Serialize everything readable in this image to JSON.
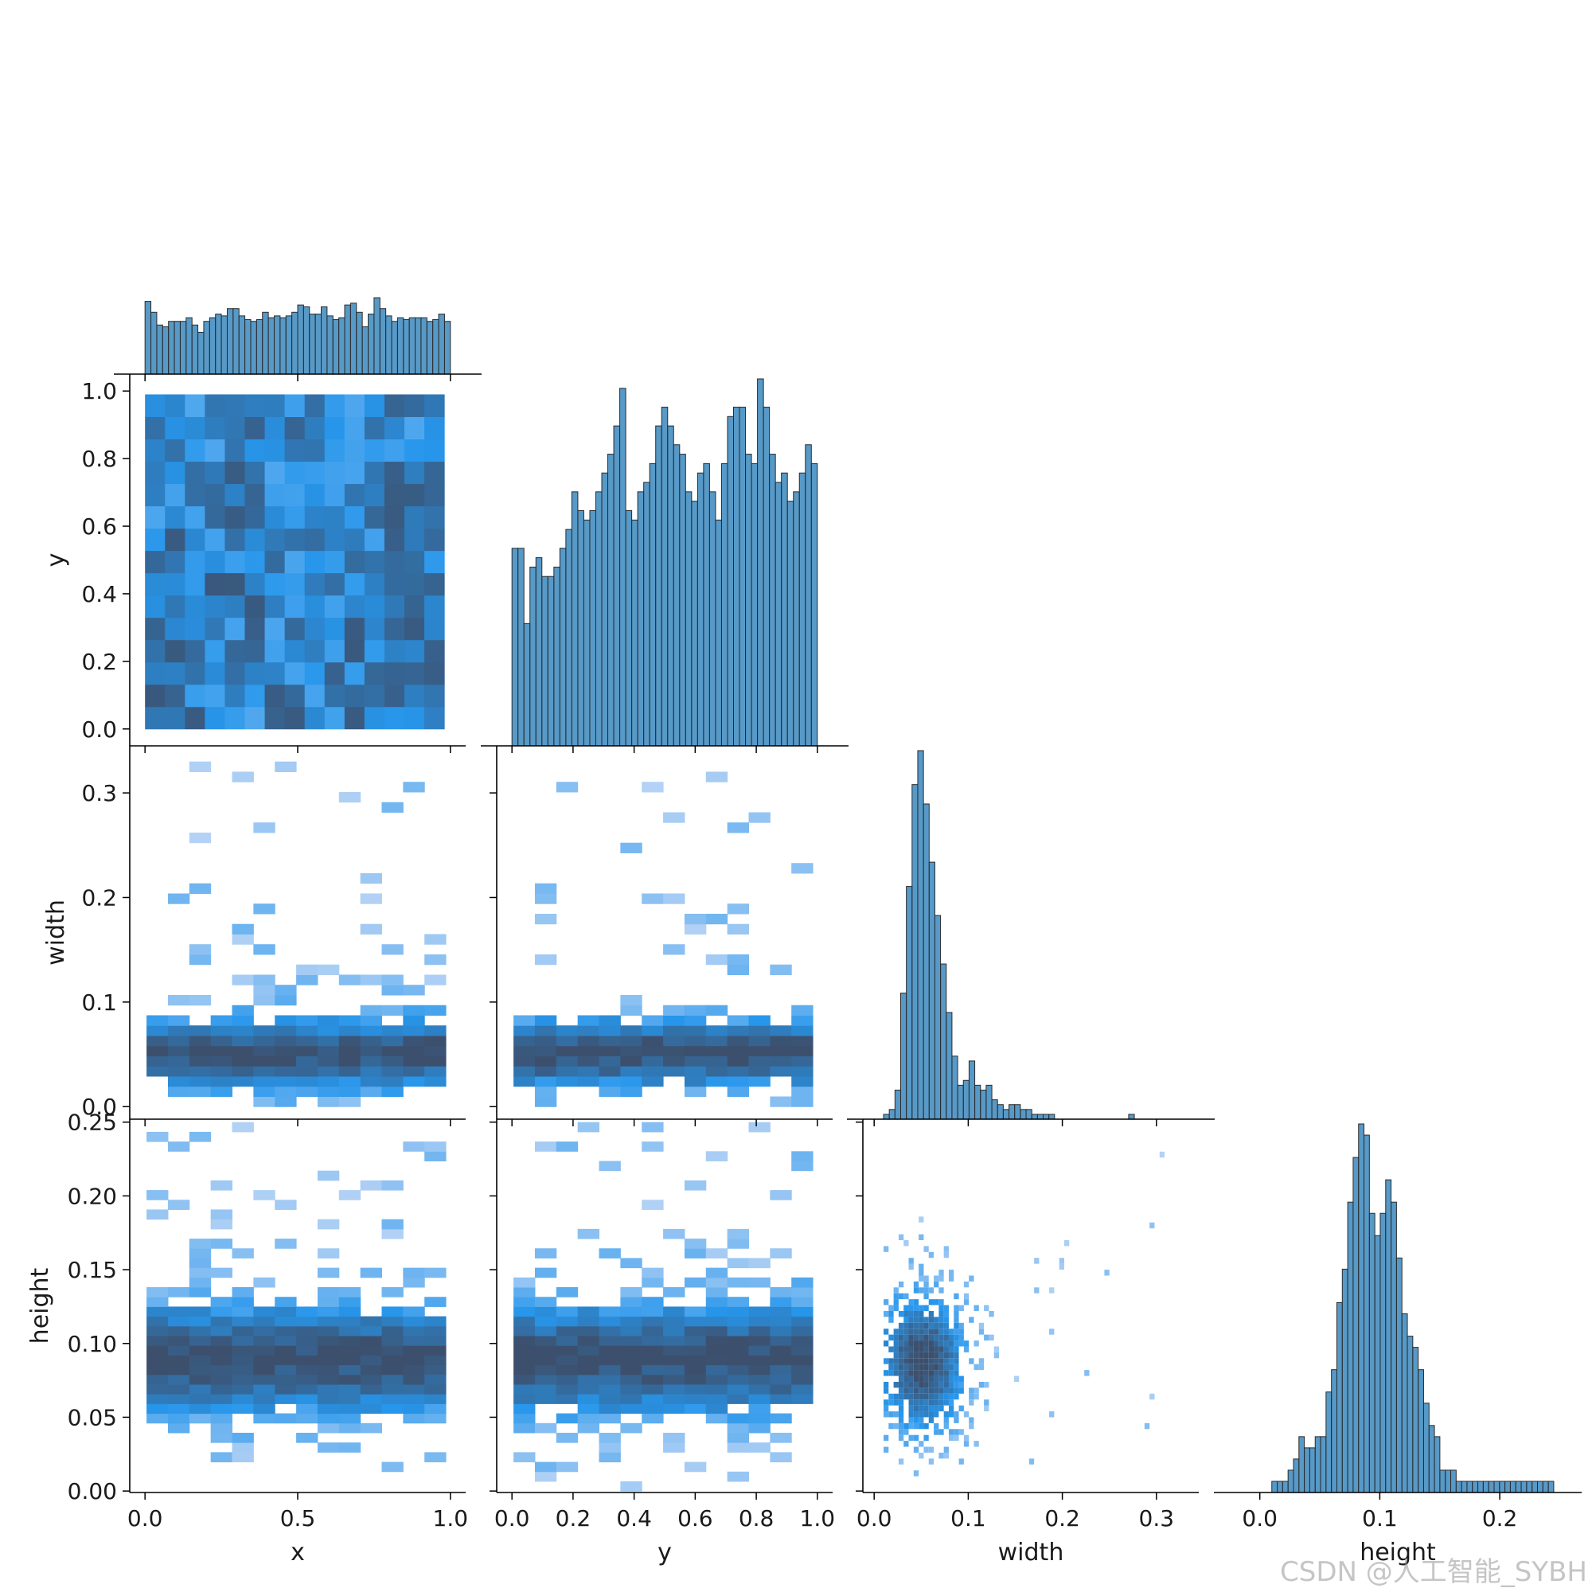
{
  "chart_data": {
    "type": "pairplot",
    "variables": [
      "x",
      "y",
      "width",
      "height"
    ],
    "corner": true,
    "diag_kind": "hist",
    "offdiag_kind": "hist2d",
    "color": "#1f77b4",
    "axes": {
      "x": {
        "label": "x",
        "lim": [
          -0.05,
          1.05
        ],
        "ticks": [
          "0.0",
          "0.5",
          "1.0"
        ]
      },
      "y": {
        "label": "y",
        "lim": [
          -0.05,
          1.05
        ],
        "ticks": [
          "0.0",
          "0.2",
          "0.4",
          "0.6",
          "0.8",
          "1.0"
        ]
      },
      "width": {
        "label": "width",
        "lim": [
          -0.012,
          0.345
        ],
        "ticks": [
          "0.0",
          "0.1",
          "0.2",
          "0.3"
        ]
      },
      "height": {
        "label": "height",
        "lim": [
          -0.001,
          0.252
        ],
        "ticks": [
          "0.00",
          "0.05",
          "0.10",
          "0.15",
          "0.20",
          "0.25"
        ],
        "diag_ticks": [
          "0.0",
          "0.1",
          "0.2"
        ]
      }
    },
    "diagonal": {
      "x": {
        "bins": [
          0.0,
          1.0
        ],
        "counts": [
          40,
          34,
          27,
          26,
          29,
          29,
          29,
          31,
          27,
          23,
          29,
          31,
          33,
          32,
          36,
          36,
          32,
          30,
          29,
          30,
          34,
          31,
          32,
          31,
          32,
          34,
          38,
          37,
          33,
          33,
          37,
          32,
          30,
          31,
          38,
          39,
          34,
          26,
          33,
          42,
          36,
          32,
          29,
          31,
          30,
          31,
          31,
          31,
          29,
          30,
          33,
          29
        ]
      },
      "y": {
        "bins": [
          0.0,
          1.0
        ],
        "counts": [
          21,
          21,
          13,
          19,
          20,
          18,
          18,
          19,
          21,
          23,
          27,
          25,
          24,
          25,
          27,
          29,
          31,
          34,
          38,
          25,
          24,
          27,
          28,
          30,
          34,
          36,
          34,
          32,
          31,
          27,
          26,
          29,
          30,
          27,
          24,
          30,
          35,
          36,
          36,
          31,
          30,
          39,
          36,
          31,
          28,
          29,
          26,
          27,
          29,
          32,
          30
        ]
      },
      "width": {
        "bins": [
          0.01,
          0.325
        ],
        "counts": [
          1,
          2,
          6,
          26,
          48,
          69,
          76,
          65,
          53,
          42,
          32,
          22,
          13,
          7,
          8,
          12,
          7,
          6,
          7,
          4,
          3,
          2,
          3,
          3,
          2,
          2,
          1,
          1,
          1,
          1,
          0,
          0,
          0,
          0,
          0,
          0,
          0,
          0,
          0,
          0,
          0,
          0,
          0,
          1,
          0,
          0,
          0,
          0,
          0,
          0,
          0,
          0
        ]
      },
      "height": {
        "bins": [
          0.01,
          0.245
        ],
        "counts": [
          1,
          1,
          1,
          2,
          3,
          5,
          4,
          4,
          5,
          5,
          9,
          11,
          17,
          20,
          26,
          30,
          33,
          32,
          25,
          23,
          25,
          28,
          26,
          21,
          16,
          14,
          13,
          11,
          8,
          6,
          5,
          2,
          2,
          2,
          1,
          1,
          1,
          1,
          1,
          1,
          1,
          1,
          1,
          1,
          1,
          1,
          1,
          1,
          1,
          1,
          1,
          1
        ]
      }
    },
    "pairs": [
      {
        "row": "y",
        "col": "x"
      },
      {
        "row": "width",
        "col": "x"
      },
      {
        "row": "width",
        "col": "y"
      },
      {
        "row": "height",
        "col": "x"
      },
      {
        "row": "height",
        "col": "y"
      },
      {
        "row": "height",
        "col": "width"
      }
    ]
  },
  "watermark": "CSDN @人工智能_SYBH"
}
